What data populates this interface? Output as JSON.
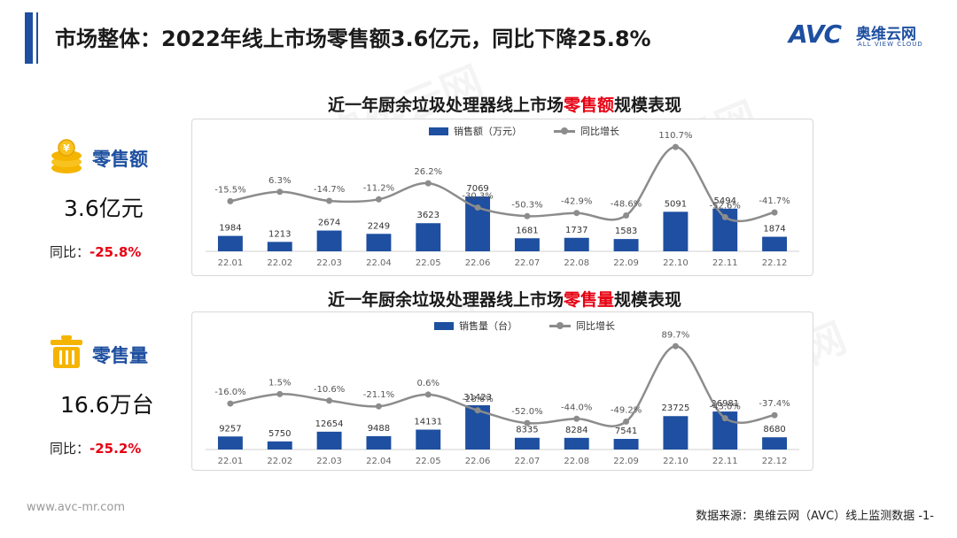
{
  "header": {
    "title": "市场整体：2022年线上市场零售额3.6亿元，同比下降25.8%",
    "logo_mark": "AVC",
    "logo_cn": "奥维云网",
    "logo_en": "ALL VIEW CLOUD"
  },
  "kpis": [
    {
      "label": "零售额",
      "value": "3.6亿元",
      "yoy_prefix": "同比：",
      "yoy_value": "-25.8%",
      "icon": "coins-icon"
    },
    {
      "label": "零售量",
      "value": "16.6万台",
      "yoy_prefix": "同比：",
      "yoy_value": "-25.2%",
      "icon": "trash-bin-icon"
    }
  ],
  "charts": {
    "amount": {
      "title_pre": "近一年厨余垃圾处理器线上市场",
      "title_hl": "零售额",
      "title_post": "规模表现",
      "legend_bar": "销售额（万元）",
      "legend_line": "同比增长"
    },
    "volume": {
      "title_pre": "近一年厨余垃圾处理器线上市场",
      "title_hl": "零售量",
      "title_post": "规模表现",
      "legend_bar": "销售量（台）",
      "legend_line": "同比增长"
    }
  },
  "chart_data": [
    {
      "type": "bar",
      "title": "近一年厨余垃圾处理器线上市场零售额规模表现",
      "categories": [
        "22.01",
        "22.02",
        "22.03",
        "22.04",
        "22.05",
        "22.06",
        "22.07",
        "22.08",
        "22.09",
        "22.10",
        "22.11",
        "22.12"
      ],
      "series": [
        {
          "name": "销售额（万元）",
          "type": "bar",
          "values": [
            1984,
            1213,
            2674,
            2249,
            3623,
            7069,
            1681,
            1737,
            1583,
            5091,
            5494,
            1874
          ]
        },
        {
          "name": "同比增长",
          "type": "line",
          "values": [
            -15.5,
            6.3,
            -14.7,
            -11.2,
            26.2,
            -30.3,
            -50.3,
            -42.9,
            -48.6,
            110.7,
            -52.6,
            -41.7
          ],
          "labels": [
            "-15.5%",
            "6.3%",
            "-14.7%",
            "-11.2%",
            "26.2%",
            "-30.3%",
            "-50.3%",
            "-42.9%",
            "-48.6%",
            "110.7%",
            "-52.6%",
            "-41.7%"
          ]
        }
      ],
      "colors": {
        "bar": "#1e4fa0",
        "line": "#8c8c8c"
      },
      "legend": "top"
    },
    {
      "type": "bar",
      "title": "近一年厨余垃圾处理器线上市场零售量规模表现",
      "categories": [
        "22.01",
        "22.02",
        "22.03",
        "22.04",
        "22.05",
        "22.06",
        "22.07",
        "22.08",
        "22.09",
        "22.10",
        "22.11",
        "22.12"
      ],
      "series": [
        {
          "name": "销售量（台）",
          "type": "bar",
          "values": [
            9257,
            5750,
            12654,
            9488,
            14131,
            31423,
            8335,
            8284,
            7541,
            23725,
            26981,
            8680
          ]
        },
        {
          "name": "同比增长",
          "type": "line",
          "values": [
            -16.0,
            1.5,
            -10.6,
            -21.1,
            0.6,
            -28.6,
            -52.0,
            -44.0,
            -49.2,
            89.7,
            -43.0,
            -37.4
          ],
          "labels": [
            "-16.0%",
            "1.5%",
            "-10.6%",
            "-21.1%",
            "0.6%",
            "-28.6%",
            "-52.0%",
            "-44.0%",
            "-49.2%",
            "89.7%",
            "-43.0%",
            "-37.4%"
          ]
        }
      ],
      "colors": {
        "bar": "#1e4fa0",
        "line": "#8c8c8c"
      },
      "legend": "top"
    }
  ],
  "footer": {
    "url": "www.avc-mr.com",
    "source": "数据来源：奥维云网（AVC）线上监测数据 -1-"
  }
}
